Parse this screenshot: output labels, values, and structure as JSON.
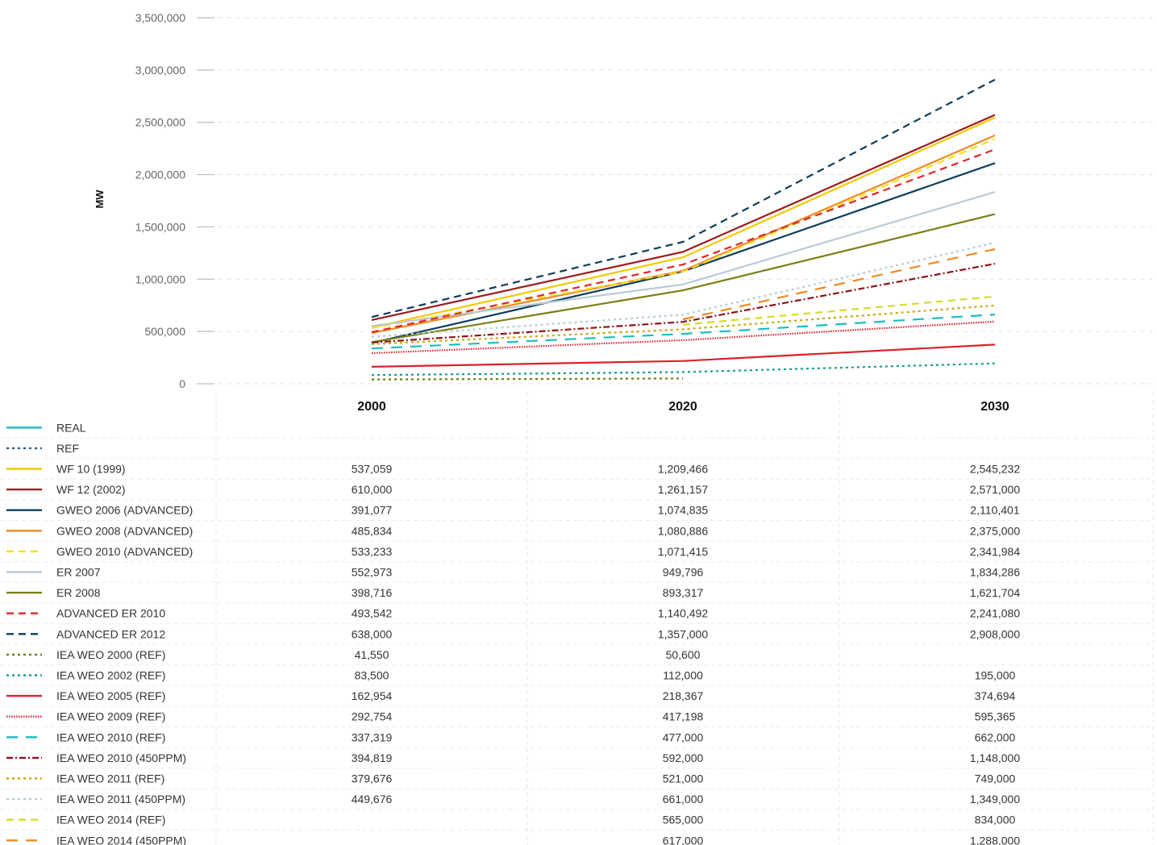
{
  "chart_data": {
    "type": "line",
    "title": "",
    "xlabel": "",
    "ylabel": "MW",
    "ylim": [
      0,
      3500000
    ],
    "y_ticks": [
      "0",
      "500,000",
      "1,000,000",
      "1,500,000",
      "2,000,000",
      "2,500,000",
      "3,000,000",
      "3,500,000"
    ],
    "y_tick_values": [
      0,
      500000,
      1000000,
      1500000,
      2000000,
      2500000,
      3000000,
      3500000
    ],
    "categories": [
      "2000",
      "2020",
      "2030"
    ],
    "grid": true,
    "legend": "table-below",
    "series": [
      {
        "name": "REAL",
        "color": "#1bbcc0",
        "style": "solid",
        "values": [
          null,
          null,
          null
        ],
        "labels": [
          "",
          "",
          ""
        ]
      },
      {
        "name": "REF",
        "color": "#2a5d8f",
        "style": "dotted",
        "values": [
          null,
          null,
          null
        ],
        "labels": [
          "",
          "",
          ""
        ]
      },
      {
        "name": "WF 10 (1999)",
        "color": "#f5c800",
        "style": "solid",
        "values": [
          537059,
          1209466,
          2545232
        ],
        "labels": [
          "537,059",
          "1,209,466",
          "2,545,232"
        ]
      },
      {
        "name": "WF 12 (2002)",
        "color": "#9b1b1f",
        "style": "solid",
        "values": [
          610000,
          1261157,
          2571000
        ],
        "labels": [
          "610,000",
          "1,261,157",
          "2,571,000"
        ]
      },
      {
        "name": "GWEO 2006 (ADVANCED)",
        "color": "#0e3d5a",
        "style": "solid",
        "values": [
          391077,
          1074835,
          2110401
        ],
        "labels": [
          "391,077",
          "1,074,835",
          "2,110,401"
        ]
      },
      {
        "name": "GWEO 2008 (ADVANCED)",
        "color": "#f08a24",
        "style": "solid",
        "values": [
          485834,
          1080886,
          2375000
        ],
        "labels": [
          "485,834",
          "1,080,886",
          "2,375,000"
        ]
      },
      {
        "name": "GWEO 2010 (ADVANCED)",
        "color": "#f2e21c",
        "style": "dashed",
        "values": [
          533233,
          1071415,
          2341984
        ],
        "labels": [
          "533,233",
          "1,071,415",
          "2,341,984"
        ]
      },
      {
        "name": "ER 2007",
        "color": "#b7cbd6",
        "style": "solid",
        "values": [
          552973,
          949796,
          1834286
        ],
        "labels": [
          "552,973",
          "949,796",
          "1,834,286"
        ]
      },
      {
        "name": "ER 2008",
        "color": "#7a7f15",
        "style": "solid",
        "values": [
          398716,
          893317,
          1621704
        ],
        "labels": [
          "398,716",
          "893,317",
          "1,621,704"
        ]
      },
      {
        "name": "ADVANCED ER 2010",
        "color": "#e0262a",
        "style": "dashed",
        "values": [
          493542,
          1140492,
          2241080
        ],
        "labels": [
          "493,542",
          "1,140,492",
          "2,241,080"
        ]
      },
      {
        "name": "ADVANCED ER 2012",
        "color": "#0e3d5a",
        "style": "dashed",
        "values": [
          638000,
          1357000,
          2908000
        ],
        "labels": [
          "638,000",
          "1,357,000",
          "2,908,000"
        ]
      },
      {
        "name": "IEA WEO 2000 (REF)",
        "color": "#6b7d12",
        "style": "dotted",
        "values": [
          41550,
          50600,
          null
        ],
        "labels": [
          "41,550",
          "50,600",
          ""
        ]
      },
      {
        "name": "IEA WEO 2002 (REF)",
        "color": "#1a9b8e",
        "style": "dotted",
        "values": [
          83500,
          112000,
          195000
        ],
        "labels": [
          "83,500",
          "112,000",
          "195,000"
        ]
      },
      {
        "name": "IEA WEO 2005 (REF)",
        "color": "#d9222a",
        "style": "solid",
        "values": [
          162954,
          218367,
          374694
        ],
        "labels": [
          "162,954",
          "218,367",
          "374,694"
        ]
      },
      {
        "name": "IEA WEO 2009 (REF)",
        "color": "#d9222a",
        "style": "fine-dotted",
        "values": [
          292754,
          417198,
          595365
        ],
        "labels": [
          "292,754",
          "417,198",
          "595,365"
        ]
      },
      {
        "name": "IEA WEO 2010 (REF)",
        "color": "#1bbcc0",
        "style": "long-dashed",
        "values": [
          337319,
          477000,
          662000
        ],
        "labels": [
          "337,319",
          "477,000",
          "662,000"
        ]
      },
      {
        "name": "IEA WEO 2010 (450PPM)",
        "color": "#8c1319",
        "style": "dash-dot",
        "values": [
          394819,
          592000,
          1148000
        ],
        "labels": [
          "394,819",
          "592,000",
          "1,148,000"
        ]
      },
      {
        "name": "IEA WEO 2011 (REF)",
        "color": "#c9a80a",
        "style": "dotted",
        "values": [
          379676,
          521000,
          749000
        ],
        "labels": [
          "379,676",
          "521,000",
          "749,000"
        ]
      },
      {
        "name": "IEA WEO 2011 (450PPM)",
        "color": "#b7cbd6",
        "style": "dotted",
        "values": [
          449676,
          661000,
          1349000
        ],
        "labels": [
          "449,676",
          "661,000",
          "1,349,000"
        ]
      },
      {
        "name": "IEA WEO 2014 (REF)",
        "color": "#d6dc2a",
        "style": "dashed",
        "values": [
          null,
          565000,
          834000
        ],
        "labels": [
          "",
          "565,000",
          "834,000"
        ]
      },
      {
        "name": "IEA WEO 2014 (450PPM)",
        "color": "#f08a24",
        "style": "long-dashed",
        "values": [
          null,
          617000,
          1288000
        ],
        "labels": [
          "",
          "617,000",
          "1,288,000"
        ]
      }
    ]
  }
}
